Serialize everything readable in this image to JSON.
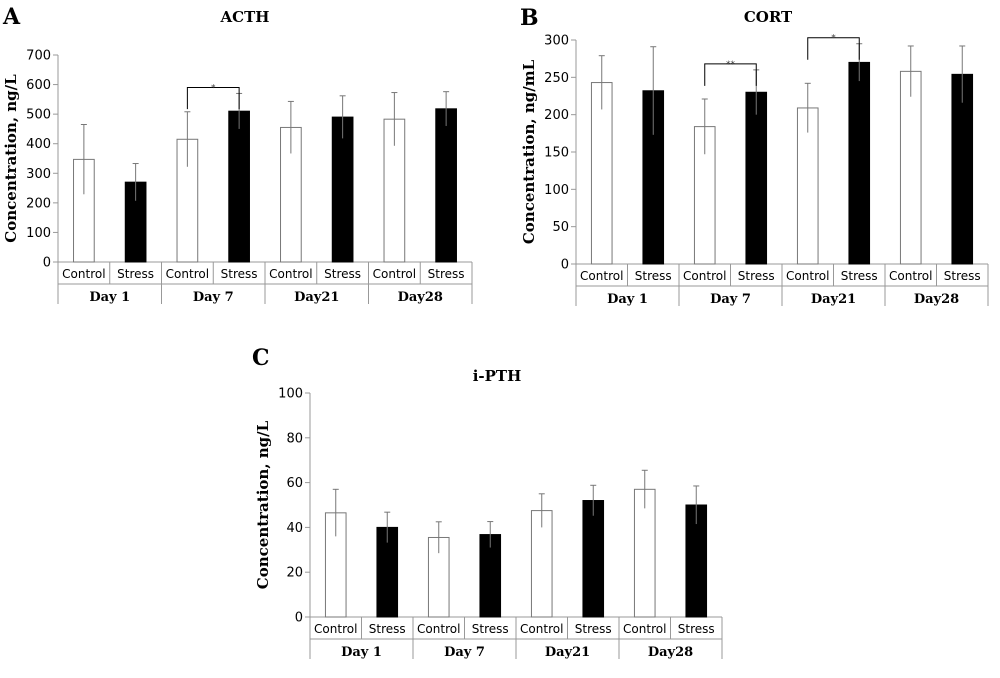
{
  "chart_data": [
    {
      "panel": "A",
      "type": "bar",
      "title": "ACTH",
      "ylabel": "Concentration, ng/L",
      "ylim": [
        0,
        700
      ],
      "yticks": [
        0,
        100,
        200,
        300,
        400,
        500,
        600,
        700
      ],
      "groups": [
        "Day 1",
        "Day 7",
        "Day21",
        "Day28"
      ],
      "categories": [
        "Control",
        "Stress",
        "Control",
        "Stress",
        "Control",
        "Stress",
        "Control",
        "Stress"
      ],
      "values": [
        347,
        270,
        415,
        510,
        455,
        490,
        483,
        518
      ],
      "errors": [
        118,
        63,
        93,
        60,
        88,
        72,
        90,
        58
      ],
      "fills": [
        "#ffffff",
        "#000000",
        "#ffffff",
        "#000000",
        "#ffffff",
        "#000000",
        "#ffffff",
        "#000000"
      ],
      "significance": [
        {
          "from": 2,
          "to": 3,
          "label": "*"
        }
      ]
    },
    {
      "panel": "B",
      "type": "bar",
      "title": "CORT",
      "ylabel": "Concentration, ng/mL",
      "ylim": [
        0,
        300
      ],
      "yticks": [
        0,
        50,
        100,
        150,
        200,
        250,
        300
      ],
      "groups": [
        "Day 1",
        "Day 7",
        "Day21",
        "Day28"
      ],
      "categories": [
        "Control",
        "Stress",
        "Control",
        "Stress",
        "Control",
        "Stress",
        "Control",
        "Stress"
      ],
      "values": [
        243,
        232,
        184,
        230,
        209,
        270,
        258,
        254
      ],
      "errors": [
        36,
        59,
        37,
        30,
        33,
        25,
        34,
        38
      ],
      "fills": [
        "#ffffff",
        "#000000",
        "#ffffff",
        "#000000",
        "#ffffff",
        "#000000",
        "#ffffff",
        "#000000"
      ],
      "significance": [
        {
          "from": 2,
          "to": 3,
          "label": "**"
        },
        {
          "from": 4,
          "to": 5,
          "label": "*"
        }
      ]
    },
    {
      "panel": "C",
      "type": "bar",
      "title": "i-PTH",
      "ylabel": "Concentration, ng/L",
      "ylim": [
        0,
        100
      ],
      "yticks": [
        0,
        20,
        40,
        60,
        80,
        100
      ],
      "groups": [
        "Day 1",
        "Day 7",
        "Day21",
        "Day28"
      ],
      "categories": [
        "Control",
        "Stress",
        "Control",
        "Stress",
        "Control",
        "Stress",
        "Control",
        "Stress"
      ],
      "values": [
        46.5,
        40,
        35.5,
        36.8,
        47.5,
        52,
        57,
        50
      ],
      "errors": [
        10.5,
        6.8,
        7,
        5.8,
        7.5,
        6.8,
        8.5,
        8.5
      ],
      "fills": [
        "#ffffff",
        "#000000",
        "#ffffff",
        "#000000",
        "#ffffff",
        "#000000",
        "#ffffff",
        "#000000"
      ],
      "significance": []
    }
  ]
}
